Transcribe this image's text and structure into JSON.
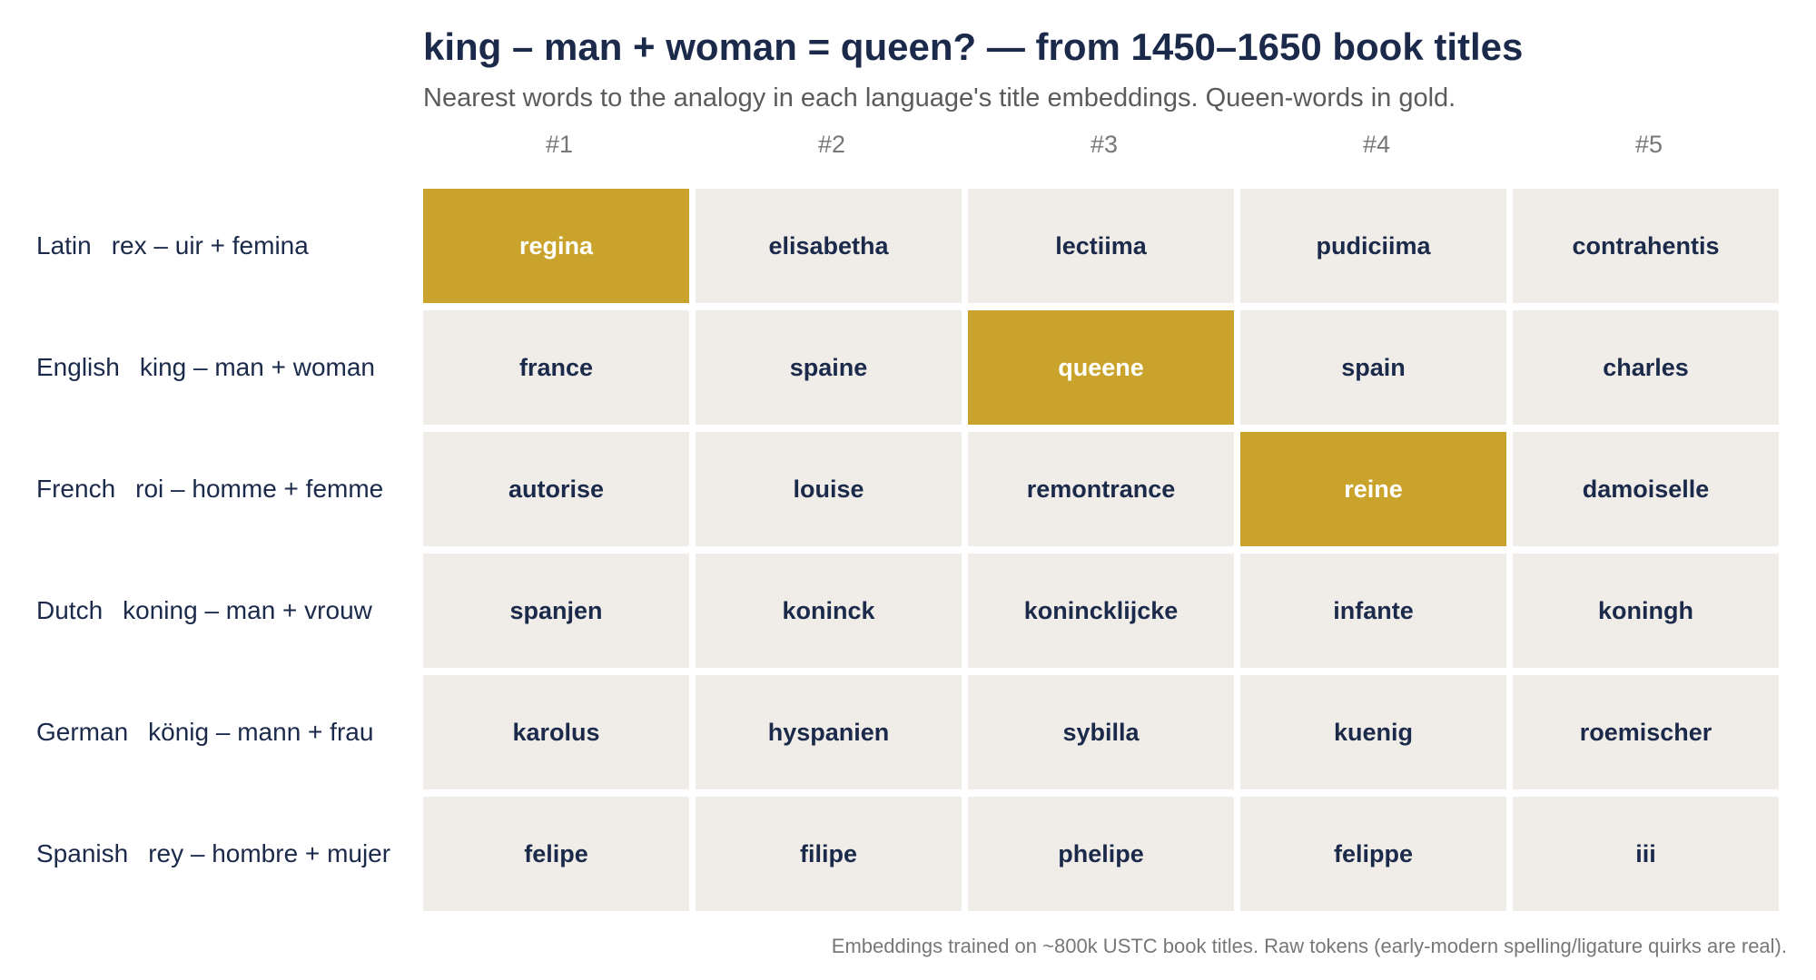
{
  "chart_data": {
    "type": "table",
    "title": "king – man + woman = queen?  —  from 1450–1650 book titles",
    "subtitle": "Nearest words to the analogy in each language's title embeddings. Queen-words in gold.",
    "columns": [
      "#1",
      "#2",
      "#3",
      "#4",
      "#5"
    ],
    "rows": [
      {
        "language": "Latin",
        "analogy": "rex – uir + femina",
        "words": [
          "regina",
          "elisabetha",
          "lectiima",
          "pudiciima",
          "contrahentis"
        ],
        "queen_rank": 1
      },
      {
        "language": "English",
        "analogy": "king – man + woman",
        "words": [
          "france",
          "spaine",
          "queene",
          "spain",
          "charles"
        ],
        "queen_rank": 3
      },
      {
        "language": "French",
        "analogy": "roi – homme + femme",
        "words": [
          "autorise",
          "louise",
          "remontrance",
          "reine",
          "damoiselle"
        ],
        "queen_rank": 4
      },
      {
        "language": "Dutch",
        "analogy": "koning – man + vrouw",
        "words": [
          "spanjen",
          "koninck",
          "konincklijcke",
          "infante",
          "koningh"
        ],
        "queen_rank": null
      },
      {
        "language": "German",
        "analogy": "könig – mann + frau",
        "words": [
          "karolus",
          "hyspanien",
          "sybilla",
          "kuenig",
          "roemischer"
        ],
        "queen_rank": null
      },
      {
        "language": "Spanish",
        "analogy": "rey – hombre + mujer",
        "words": [
          "felipe",
          "filipe",
          "phelipe",
          "felippe",
          "iii"
        ],
        "queen_rank": null
      }
    ],
    "footnote": "Embeddings trained on ~800k USTC book titles. Raw tokens (early-modern spelling/ligature quirks are real).",
    "colors": {
      "highlight": "#c9a32b",
      "cell": "#f0ede8",
      "text": "#1b2a4a"
    }
  }
}
